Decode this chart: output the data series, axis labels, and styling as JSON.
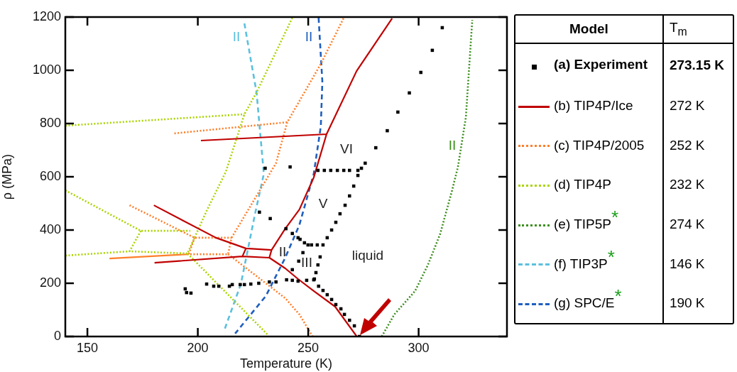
{
  "chart_data": {
    "type": "line",
    "xlabel": "Temperature (K)",
    "ylabel": "ρ (MPa)",
    "legend_title": "Model",
    "legend": "right",
    "grid": false,
    "xlim": [
      140,
      340
    ],
    "xticks": [
      150,
      200,
      250,
      300
    ],
    "ylim": [
      0,
      1200
    ],
    "yticks": [
      0,
      200,
      400,
      600,
      800,
      1000,
      1200
    ],
    "series": [
      {
        "name": "(a) Experiment",
        "type": "scatter",
        "marker": "square",
        "color": "#000000",
        "x": [
          194.3,
          194.9,
          196.9,
          204.0,
          207.2,
          209.5,
          214.3,
          215.6,
          219.2,
          221.1,
          224.0,
          227.6,
          232.4,
          235.4,
          240.2,
          242.8,
          245.4,
          249.3,
          252.5,
          252.8,
          254.7,
          256.7,
          258.6,
          260.6,
          262.5,
          264.8,
          266.4,
          268.7,
          270.9,
          273.2,
          242.8,
          245.7,
          253.5,
          254.4,
          247.6,
          255.4,
          227.9,
          232.8,
          239.9,
          242.8,
          245.4,
          246.3,
          248.3,
          249.9,
          251.5,
          254.1,
          256.7,
          258.6,
          260.6,
          262.5,
          264.4,
          266.7,
          268.7,
          270.6,
          272.5,
          272.5,
          274.1,
          275.8,
          254.4,
          257.3,
          260.2,
          263.2,
          266.1,
          268.7,
          230.5,
          241.8,
          280.6,
          285.8,
          290.6,
          295.8,
          301.0,
          306.2,
          310.7
        ],
        "values": [
          179,
          165,
          163,
          197,
          189,
          189,
          189,
          195,
          195,
          195,
          197,
          200,
          205,
          205,
          213,
          211,
          208,
          211,
          213,
          216,
          189,
          173,
          157,
          139,
          120,
          104,
          83,
          61,
          40,
          0,
          251,
          283,
          240,
          269,
          315,
          299,
          467,
          443,
          405,
          387,
          371,
          365,
          352,
          344,
          344,
          344,
          344,
          371,
          400,
          429,
          461,
          493,
          528,
          565,
          605,
          624,
          632,
          651,
          624,
          624,
          624,
          624,
          624,
          624,
          632,
          637,
          709,
          773,
          843,
          915,
          992,
          1075,
          1160
        ]
      },
      {
        "name": "(b) TIP4P/Ice",
        "line_style": "solid",
        "color": "#c00000",
        "x": [
          232.4,
          239.6,
          245.4,
          252.5,
          262.2,
          272,
          null,
          232.4,
          233.4,
          null,
          233.4,
          239.6,
          246.0,
          252.5,
          258.3,
          271.9,
          288.0,
          null,
          201.4,
          258.3,
          null,
          180.1,
          208.2,
          221.8,
          233.4,
          null,
          221.8,
          220.2,
          null,
          180.4,
          220.2,
          232.4
        ],
        "values": [
          296,
          256,
          216,
          171,
          112,
          0,
          null,
          296,
          325,
          null,
          325,
          405,
          477,
          597,
          760,
          997,
          1195,
          null,
          736,
          760,
          null,
          493,
          371,
          331,
          325,
          null,
          331,
          301,
          null,
          277,
          301,
          296
        ]
      },
      {
        "name": "(c) TIP4P/2005",
        "line_style": "dotted",
        "color": "#ff7f2a",
        "x": [
          213.7,
          239.6,
          246.0,
          252,
          null,
          215.3,
          235.4,
          240.5,
          255.7,
          266.1,
          null,
          189.4,
          240.5,
          null,
          169.1,
          198.5,
          215.3,
          213.7,
          195.9,
          198.5
        ],
        "values": [
          309,
          144,
          83,
          0,
          null,
          371,
          651,
          805,
          1024,
          1197,
          null,
          763,
          805,
          null,
          493,
          371,
          371,
          309,
          309,
          371
        ]
      },
      {
        "name": "(d) TIP4P",
        "line_style": "dotted",
        "color": "#aad400",
        "x": [
          242.8,
          226.6,
          221.1,
          212.7,
          204.0,
          195.3,
          231.5,
          null,
          140,
          174.2,
          196.6,
          null,
          174.2,
          169.1,
          195.3,
          null,
          140,
          169.1,
          null,
          140,
          221.1
        ],
        "values": [
          1197,
          917,
          835,
          619,
          472,
          312,
          8,
          null,
          549,
          397,
          397,
          null,
          397,
          320,
          312,
          null,
          304,
          320,
          null,
          792,
          835
        ]
      },
      {
        "name": "(e) TIP5P$^{*}$",
        "line_style": "dotted",
        "color": "#3c8f1e",
        "x": [
          283.3,
          289,
          298.4,
          304.2,
          309.7,
          315,
          317.8,
          321.4,
          324.3
        ],
        "values": [
          0,
          83,
          171,
          269,
          384,
          544,
          637,
          824,
          1189
        ]
      },
      {
        "name": "(f) TIP3P$^{*}$",
        "line_style": "dashed",
        "color": "#5bc0de",
        "x": [
          221.1,
          226.6,
          229.9,
          226.0,
          219.5,
          211.8
        ],
        "values": [
          1176,
          917,
          611,
          464,
          197,
          19
        ]
      },
      {
        "name": "(g) SPC/E$^{*}$",
        "line_style": "dashed",
        "color": "#1f5fbf",
        "x": [
          254.7,
          256.4,
          255.7,
          252.5,
          246,
          239.6,
          230.8,
          216.9
        ],
        "values": [
          1197,
          957,
          789,
          611,
          419,
          296,
          152,
          11
        ]
      },
      {
        "line_style": "solid",
        "color": "#ff7f2a",
        "x": [
          160,
          195.9
        ],
        "values": [
          293,
          309
        ]
      }
    ],
    "annotations": [
      "T$_{m}$",
      "273.15 K",
      "272 K",
      "252 K",
      "232 K",
      "274 K",
      "146 K",
      "190 K",
      "II",
      "II",
      "VI",
      "V",
      "II",
      "III",
      "liquid",
      "II"
    ]
  }
}
